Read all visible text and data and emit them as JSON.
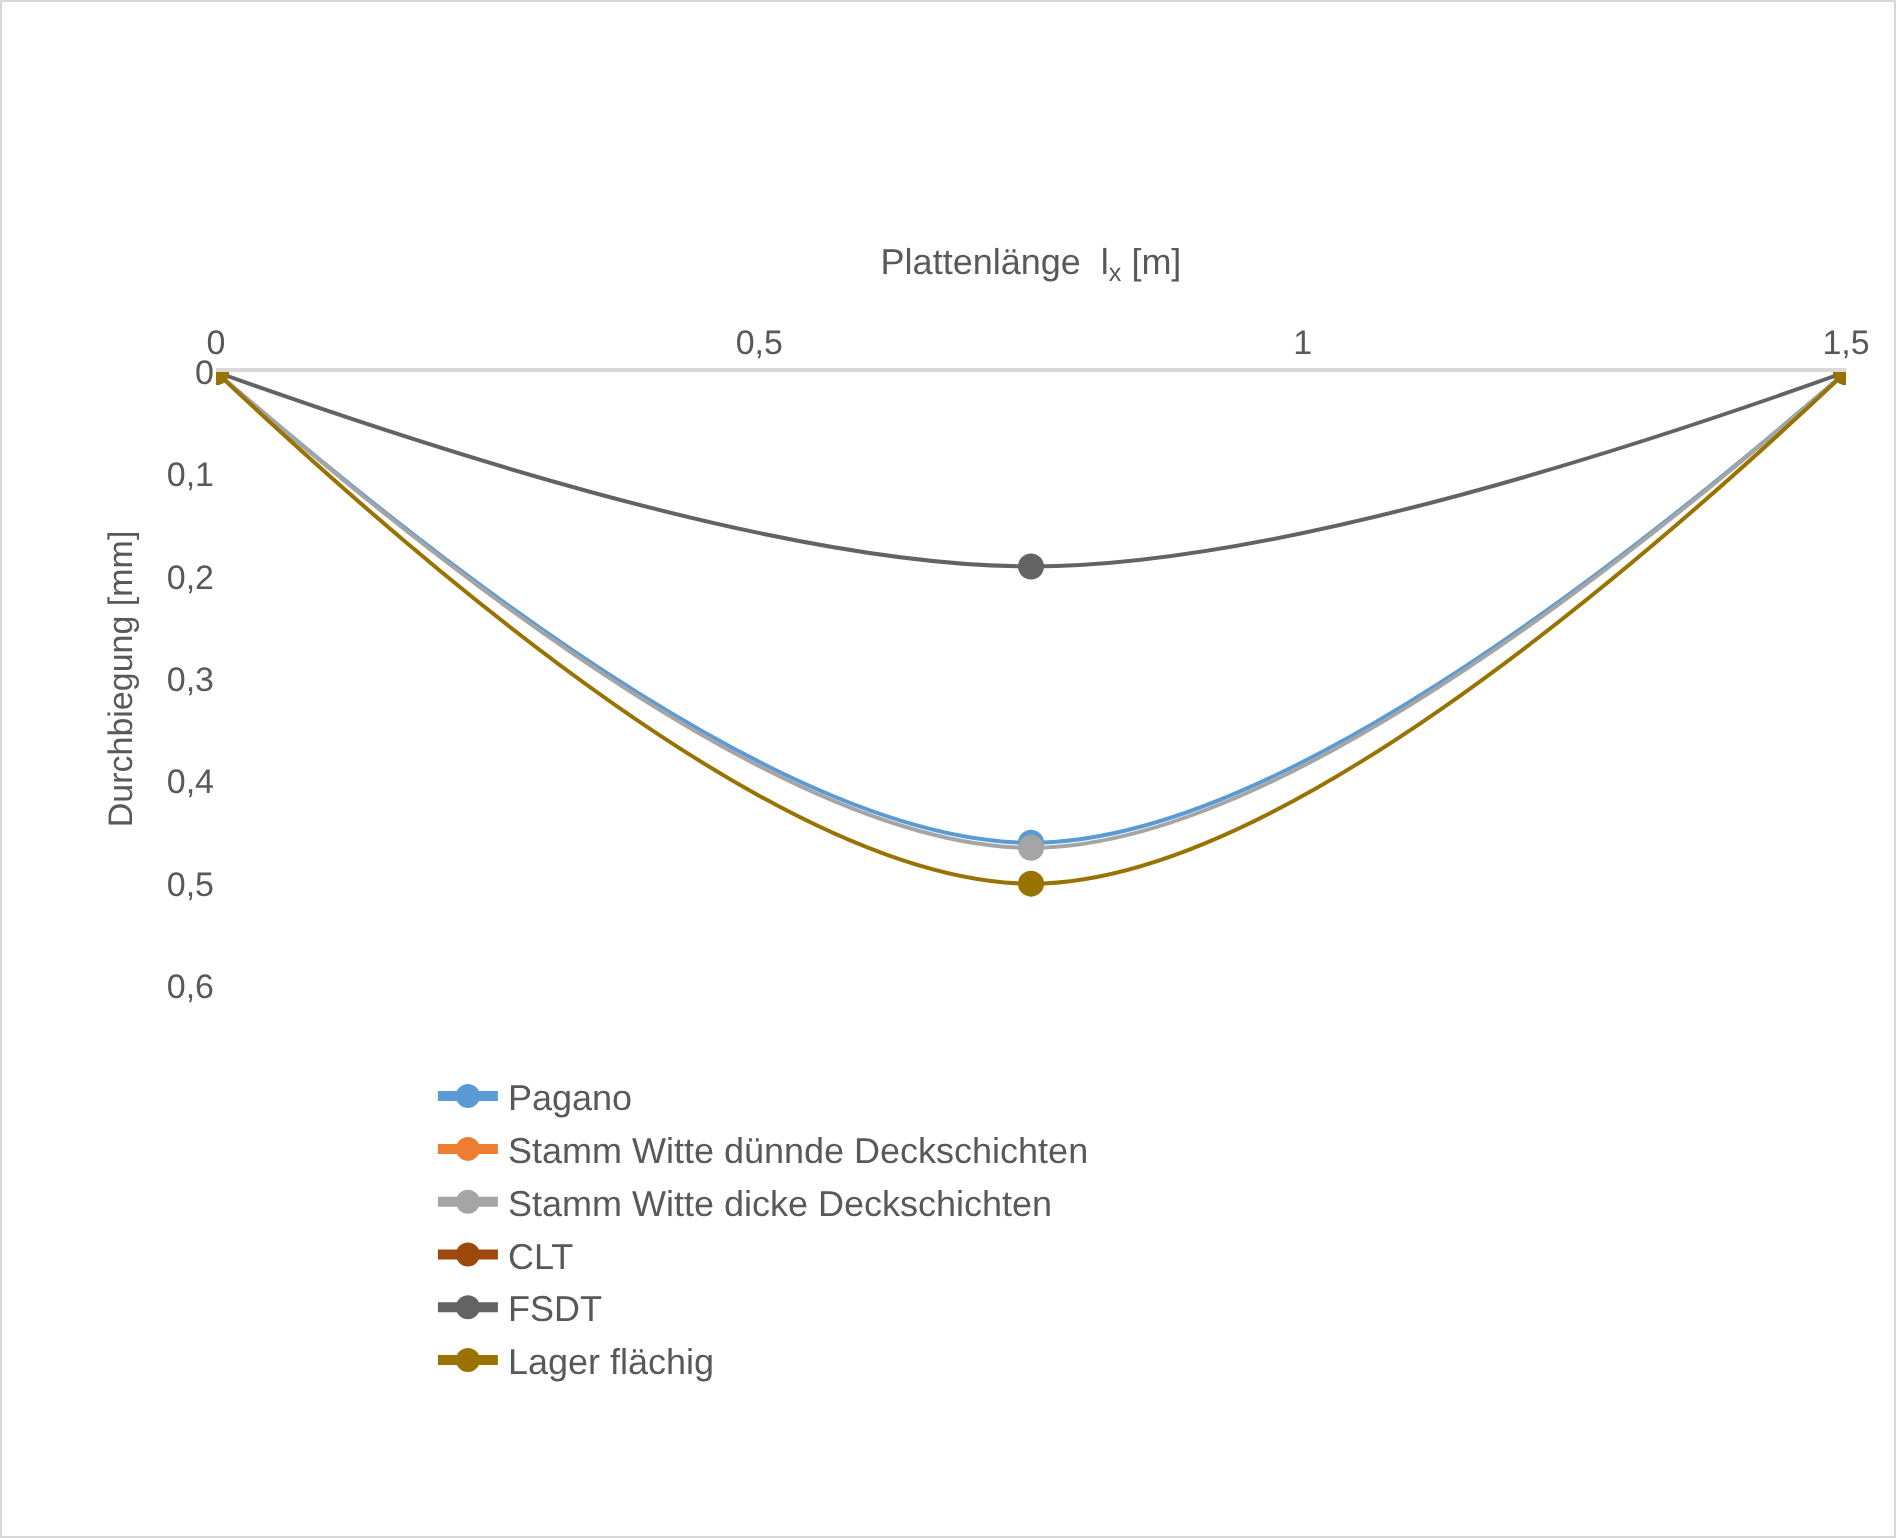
{
  "chart_data": {
    "type": "line",
    "xlabel": "Plattenlänge  l$_{x}$ [m]",
    "ylabel": "Durchbiegung [mm]",
    "x": [
      0,
      0.75,
      1.5
    ],
    "series": [
      {
        "name": "Pagano",
        "color": "#5b9bd5",
        "values": [
          0,
          0.46,
          0
        ]
      },
      {
        "name": "Stamm Witte dünnde Deckschichten",
        "color": "#ed7d31",
        "values": [
          null,
          null,
          null
        ]
      },
      {
        "name": "Stamm Witte dicke Deckschichten",
        "color": "#a5a5a5",
        "values": [
          0,
          0.465,
          0
        ]
      },
      {
        "name": "CLT",
        "color": "#9e480e",
        "values": [
          null,
          null,
          null
        ]
      },
      {
        "name": "FSDT",
        "color": "#636363",
        "values": [
          0,
          0.19,
          0
        ]
      },
      {
        "name": "Lager flächig",
        "color": "#997300",
        "values": [
          0,
          0.5,
          0
        ]
      }
    ],
    "xlim": [
      0,
      1.5
    ],
    "xticks": [
      0,
      {
        "value": 0.5,
        "label": "0,5"
      },
      1,
      {
        "value": 1.5,
        "label": "1,5"
      }
    ],
    "ylim": [
      0.6,
      0
    ],
    "yticks": [
      0,
      {
        "value": 0.1,
        "label": "0,1"
      },
      {
        "value": 0.2,
        "label": "0,2"
      },
      {
        "value": 0.3,
        "label": "0,3"
      },
      {
        "value": 0.4,
        "label": "0,4"
      },
      {
        "value": 0.5,
        "label": "0,5"
      },
      {
        "value": 0.6,
        "label": "0,6"
      }
    ],
    "grid": false,
    "legend": "bottom",
    "marker": "circle",
    "line_style": "solid"
  }
}
